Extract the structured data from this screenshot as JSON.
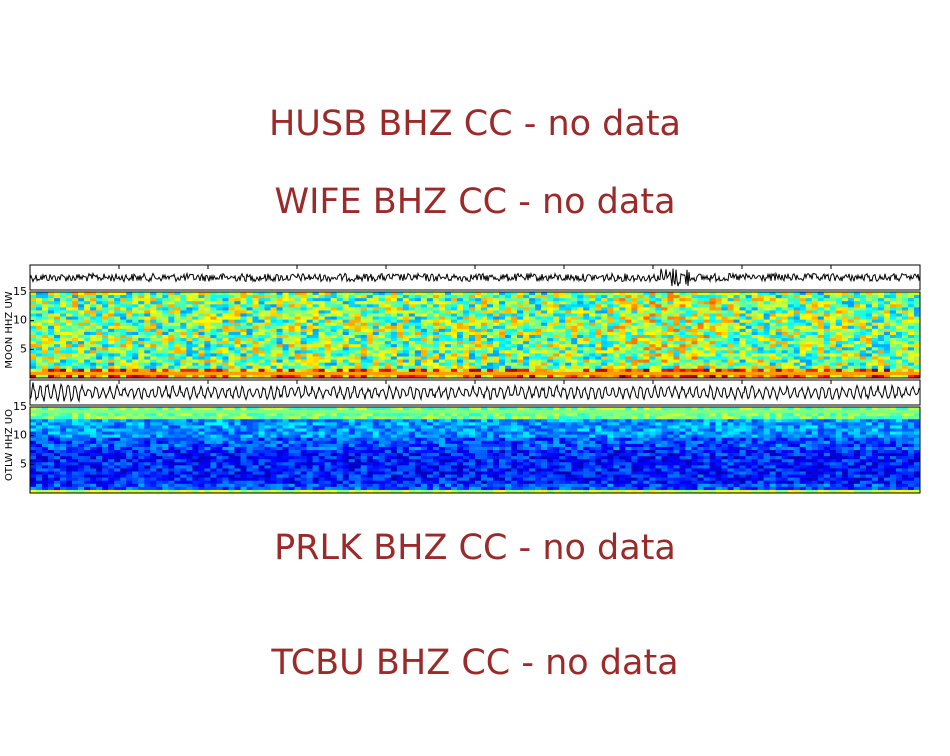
{
  "messages": [
    "HUSB BHZ CC - no data",
    "WIFE BHZ CC - no data",
    "PRLK BHZ CC - no data",
    "TCBU BHZ CC - no data"
  ],
  "spectrograms": [
    {
      "label": "MOON HHZ UW",
      "ylim": [
        0,
        15
      ],
      "yticks": [
        5,
        10,
        15
      ]
    },
    {
      "label": "OTLW HHZ UO",
      "ylim": [
        0,
        15
      ],
      "yticks": [
        5,
        10,
        15
      ]
    }
  ]
}
